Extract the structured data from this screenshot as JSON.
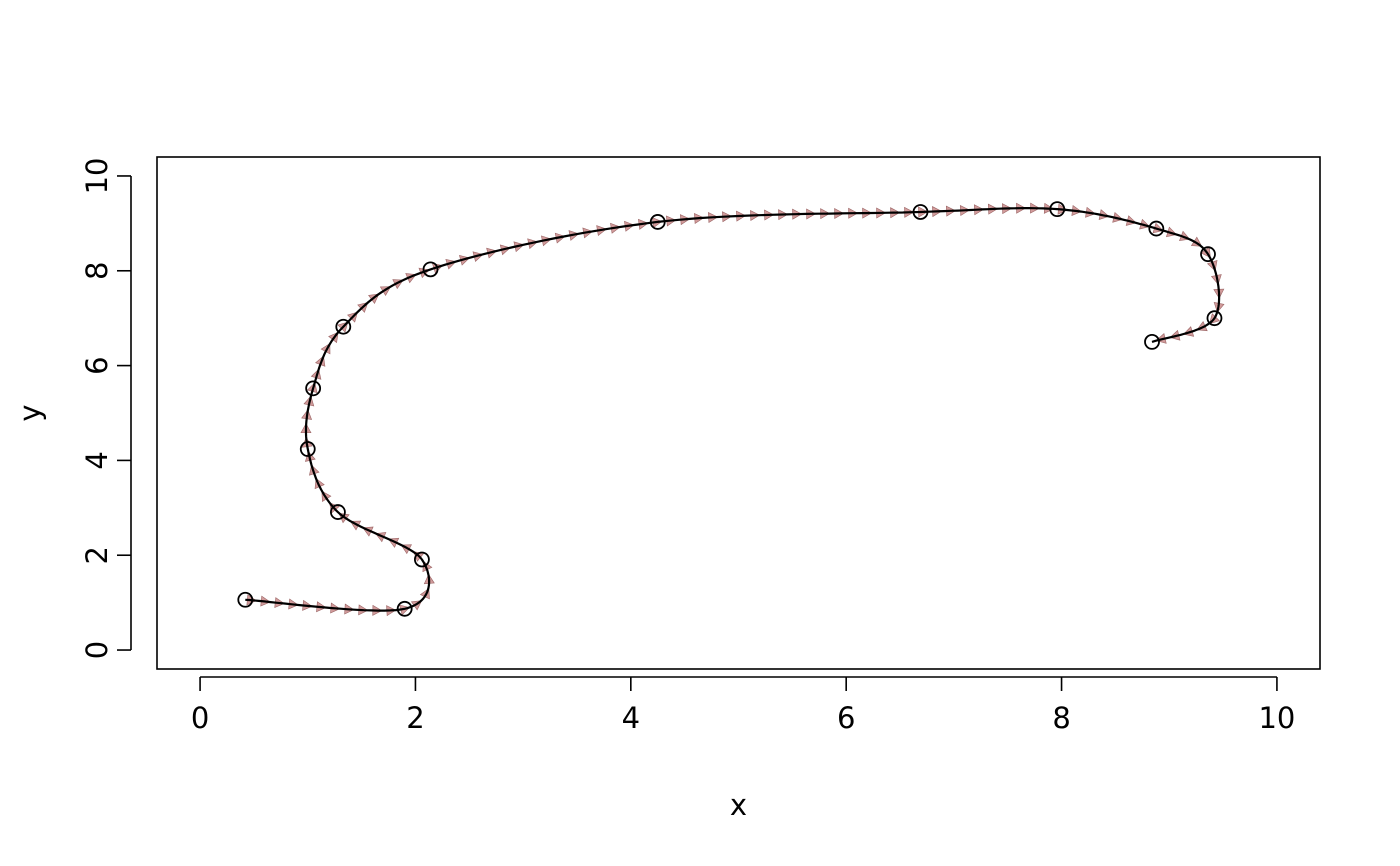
{
  "chart_data": {
    "type": "scatter",
    "title": "",
    "xlabel": "x",
    "ylabel": "y",
    "xlim": [
      -0.4,
      10.4
    ],
    "ylim": [
      -0.4,
      10.4
    ],
    "xticks": [
      0,
      2,
      4,
      6,
      8,
      10
    ],
    "yticks": [
      0,
      2,
      4,
      6,
      8,
      10
    ],
    "grid": false,
    "points": {
      "x": [
        0.42,
        1.9,
        2.06,
        1.28,
        1.0,
        1.05,
        1.33,
        2.14,
        4.25,
        6.69,
        7.96,
        8.88,
        9.36,
        9.42,
        8.84
      ],
      "y": [
        1.06,
        0.87,
        1.91,
        2.91,
        4.24,
        5.52,
        6.82,
        8.03,
        9.03,
        9.24,
        9.3,
        8.89,
        8.35,
        7.0,
        6.5
      ]
    },
    "smooth_curve": "spline through points with direction arrows",
    "colors": {
      "points": "#000000",
      "curve": "#000000",
      "arrows": "#c98a8a"
    }
  }
}
